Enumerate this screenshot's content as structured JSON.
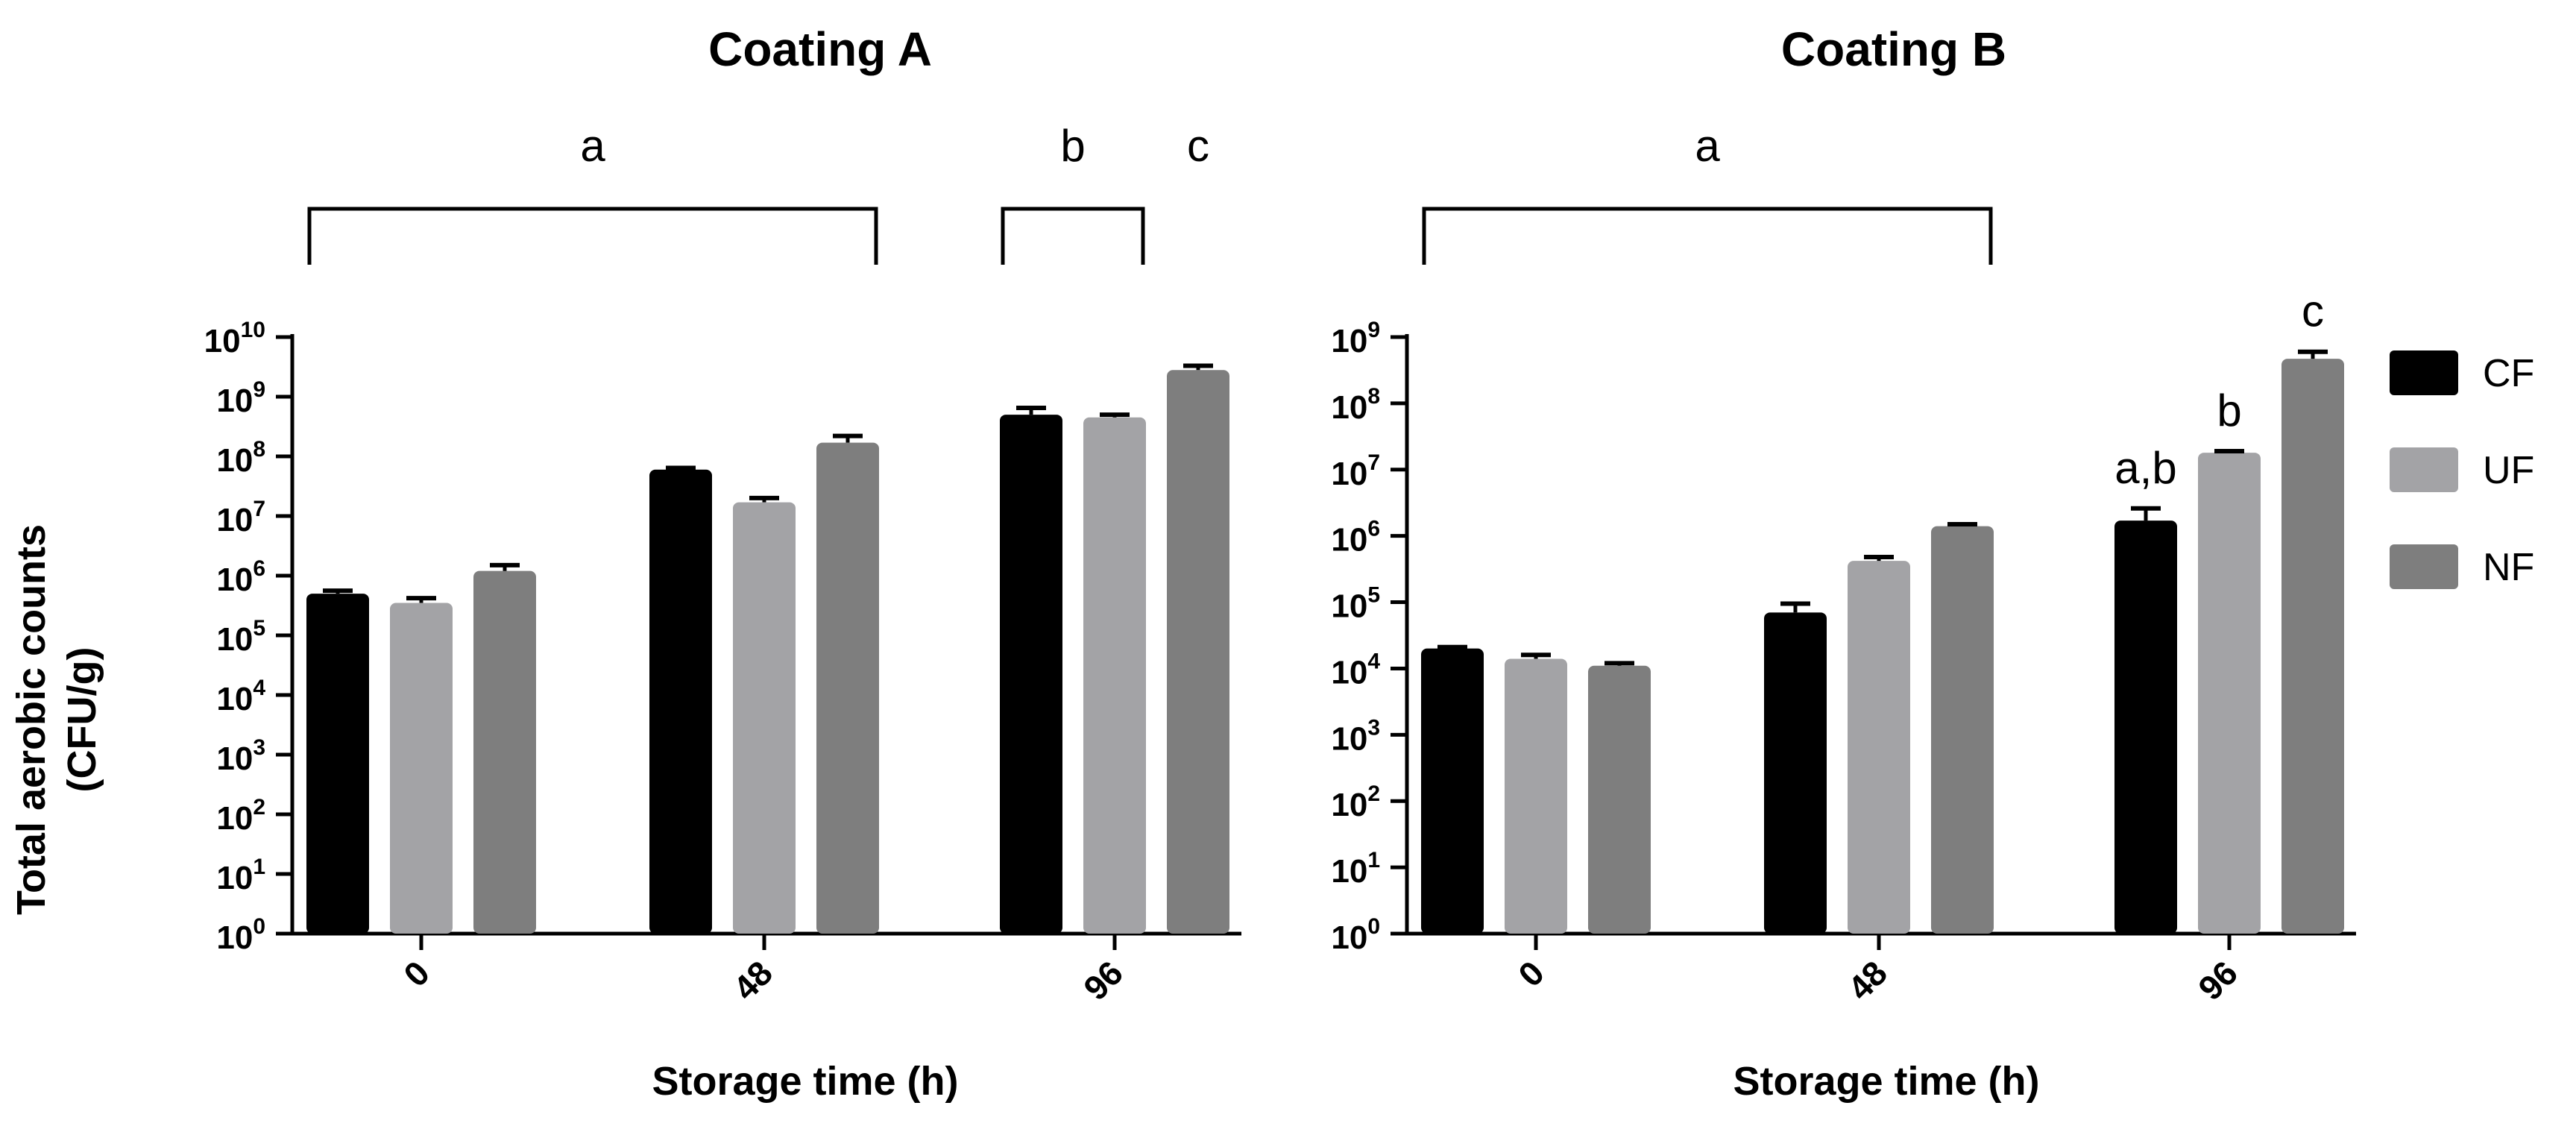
{
  "chart_data": [
    {
      "type": "bar",
      "title": "Coating A",
      "xlabel": "Storage time  (h)",
      "ylabel": "Total aerobic counts",
      "ylabel_unit": "(CFU/g)",
      "yscale": "log",
      "ylim": [
        1,
        10000000000
      ],
      "yticks": [
        {
          "base": "10",
          "exp": "0",
          "value": 1
        },
        {
          "base": "10",
          "exp": "1",
          "value": 10
        },
        {
          "base": "10",
          "exp": "2",
          "value": 100
        },
        {
          "base": "10",
          "exp": "3",
          "value": 1000
        },
        {
          "base": "10",
          "exp": "4",
          "value": 10000
        },
        {
          "base": "10",
          "exp": "5",
          "value": 100000
        },
        {
          "base": "10",
          "exp": "6",
          "value": 1000000
        },
        {
          "base": "10",
          "exp": "7",
          "value": 10000000
        },
        {
          "base": "10",
          "exp": "8",
          "value": 100000000
        },
        {
          "base": "10",
          "exp": "9",
          "value": 1000000000
        },
        {
          "base": "10",
          "exp": "10",
          "value": 10000000000
        }
      ],
      "categories": [
        "0",
        "48",
        "96"
      ],
      "series": [
        {
          "name": "CF",
          "values": [
            500000,
            60000000,
            500000000
          ],
          "errors": [
            560000,
            64000000,
            650000000
          ]
        },
        {
          "name": "UF",
          "values": [
            350000,
            17000000,
            450000000
          ],
          "errors": [
            420000,
            20000000,
            500000000
          ]
        },
        {
          "name": "NF",
          "values": [
            1200000,
            170000000,
            2800000000
          ],
          "errors": [
            1500000,
            220000000,
            3300000000
          ]
        }
      ],
      "groupings": [
        {
          "label": "a",
          "from": "0:CF",
          "to": "48:NF"
        },
        {
          "label": "b",
          "from": "96:CF",
          "to": "96:UF"
        },
        {
          "label": "c",
          "from": "96:NF",
          "to": "96:NF",
          "unbracketed": true
        }
      ],
      "bar_labels": []
    },
    {
      "type": "bar",
      "title": "Coating B",
      "xlabel": "Storage time  (h)",
      "yscale": "log",
      "ylim": [
        1,
        1000000000
      ],
      "yticks": [
        {
          "base": "10",
          "exp": "0",
          "value": 1
        },
        {
          "base": "10",
          "exp": "1",
          "value": 10
        },
        {
          "base": "10",
          "exp": "2",
          "value": 100
        },
        {
          "base": "10",
          "exp": "3",
          "value": 1000
        },
        {
          "base": "10",
          "exp": "4",
          "value": 10000
        },
        {
          "base": "10",
          "exp": "5",
          "value": 100000
        },
        {
          "base": "10",
          "exp": "6",
          "value": 1000000
        },
        {
          "base": "10",
          "exp": "7",
          "value": 10000000
        },
        {
          "base": "10",
          "exp": "8",
          "value": 100000000
        },
        {
          "base": "10",
          "exp": "9",
          "value": 1000000000
        }
      ],
      "categories": [
        "0",
        "48",
        "96"
      ],
      "series": [
        {
          "name": "CF",
          "values": [
            20000,
            70000,
            1700000
          ],
          "errors": [
            21000,
            95000,
            2600000
          ]
        },
        {
          "name": "UF",
          "values": [
            14000,
            420000,
            18000000
          ],
          "errors": [
            16000,
            480000,
            19000000
          ]
        },
        {
          "name": "NF",
          "values": [
            11000,
            1400000,
            470000000
          ],
          "errors": [
            12000,
            1500000,
            600000000
          ]
        }
      ],
      "groupings": [
        {
          "label": "a",
          "from": "0:CF",
          "to": "48:NF"
        }
      ],
      "bar_labels": [
        {
          "category": "96",
          "series": "CF",
          "text": "a,b"
        },
        {
          "category": "96",
          "series": "UF",
          "text": "b"
        },
        {
          "category": "96",
          "series": "NF",
          "text": "c"
        }
      ]
    }
  ],
  "legend": [
    {
      "name": "CF",
      "color": "#000000"
    },
    {
      "name": "UF",
      "color": "#a3a3a6"
    },
    {
      "name": "NF",
      "color": "#7e7e7e"
    }
  ]
}
